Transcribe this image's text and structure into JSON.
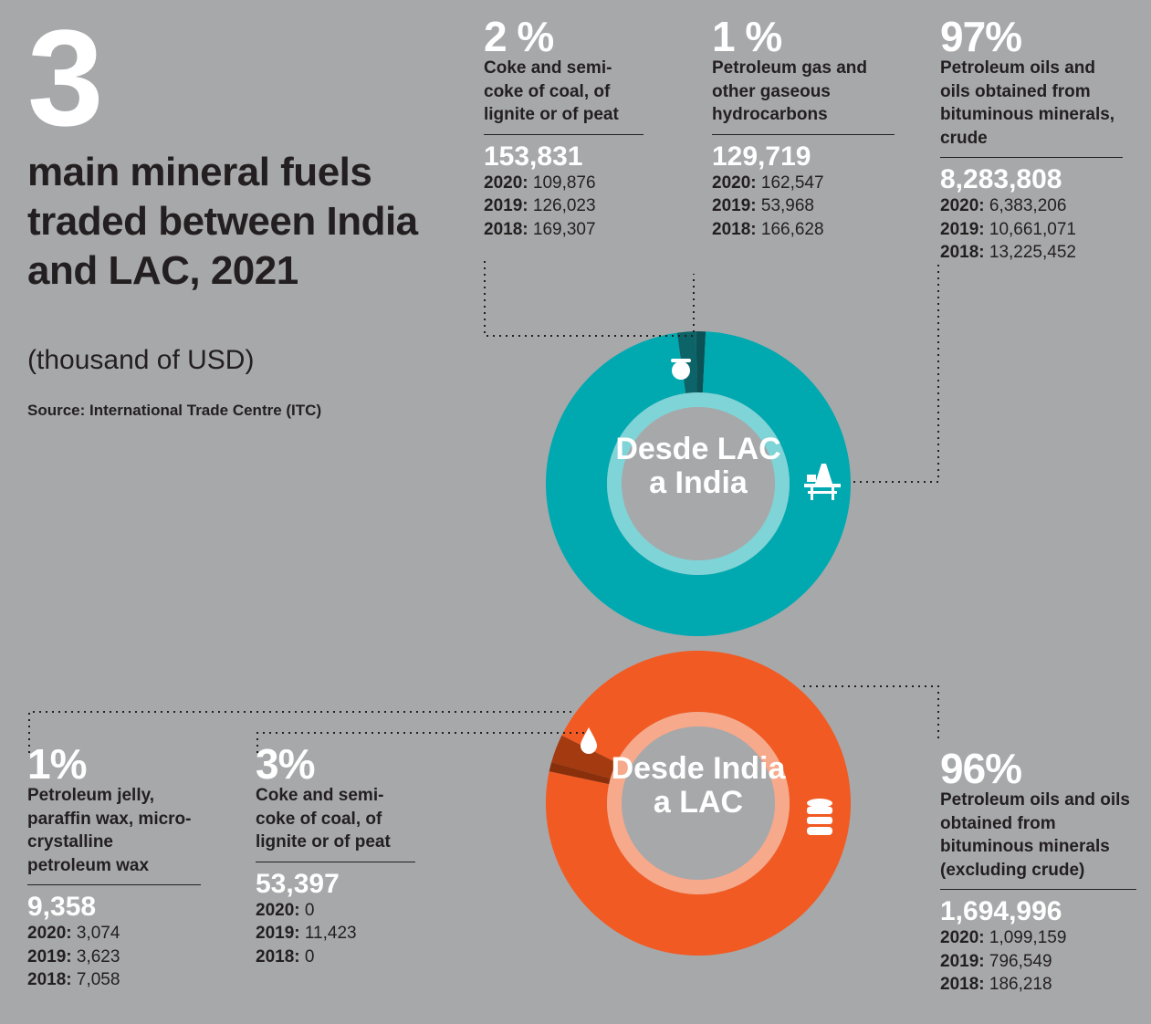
{
  "header": {
    "number": "3",
    "title": "main mineral fuels traded between India and LAC, 2021",
    "subtitle": "(thousand of USD)",
    "source": "Source: International Trade Centre (ITC)"
  },
  "chart_data": [
    {
      "type": "pie",
      "title": "Desde LAC a India",
      "categories": [
        "Coke and semi-coke of coal, of lignite or of peat",
        "Petroleum gas and other gaseous hydrocarbons",
        "Petroleum oils and oils obtained from bituminous minerals, crude"
      ],
      "values": [
        2,
        1,
        97
      ],
      "value_labels": [
        "2 %",
        "1 %",
        "97%"
      ],
      "colors": [
        "#0c6468",
        "#0a5255",
        "#00a9b0"
      ],
      "inner_ring_color": "#7fd4d7",
      "totals": [
        "153,831",
        "129,719",
        "8,283,808"
      ],
      "history": [
        [
          {
            "year": "2020:",
            "value": "109,876"
          },
          {
            "year": "2019:",
            "value": "126,023"
          },
          {
            "year": "2018:",
            "value": "169,307"
          }
        ],
        [
          {
            "year": "2020:",
            "value": "162,547"
          },
          {
            "year": "2019:",
            "value": "53,968"
          },
          {
            "year": "2018:",
            "value": "166,628"
          }
        ],
        [
          {
            "year": "2020:",
            "value": "6,383,206"
          },
          {
            "year": "2019:",
            "value": "10,661,071"
          },
          {
            "year": "2018:",
            "value": "13,225,452"
          }
        ]
      ]
    },
    {
      "type": "pie",
      "title": "Desde India a LAC",
      "categories": [
        "Petroleum jelly, paraffin wax, micro- crystalline petroleum wax",
        "Coke and semi-coke of coal, of lignite or of peat",
        "Petroleum oils and oils obtained from bituminous minerals (excluding crude)"
      ],
      "values": [
        1,
        3,
        96
      ],
      "value_labels": [
        "1%",
        "3%",
        "96%"
      ],
      "colors": [
        "#8a2f0c",
        "#a33a10",
        "#f15a22"
      ],
      "inner_ring_color": "#f7a98b",
      "totals": [
        "9,358",
        "53,397",
        "1,694,996"
      ],
      "history": [
        [
          {
            "year": "2020:",
            "value": "3,074"
          },
          {
            "year": "2019:",
            "value": "3,623"
          },
          {
            "year": "2018:",
            "value": "7,058"
          }
        ],
        [
          {
            "year": "2020:",
            "value": "0"
          },
          {
            "year": "2019:",
            "value": "11,423"
          },
          {
            "year": "2018:",
            "value": "0"
          }
        ],
        [
          {
            "year": "2020:",
            "value": "1,099,159"
          },
          {
            "year": "2019:",
            "value": "796,549"
          },
          {
            "year": "2018:",
            "value": "186,218"
          }
        ]
      ]
    }
  ]
}
